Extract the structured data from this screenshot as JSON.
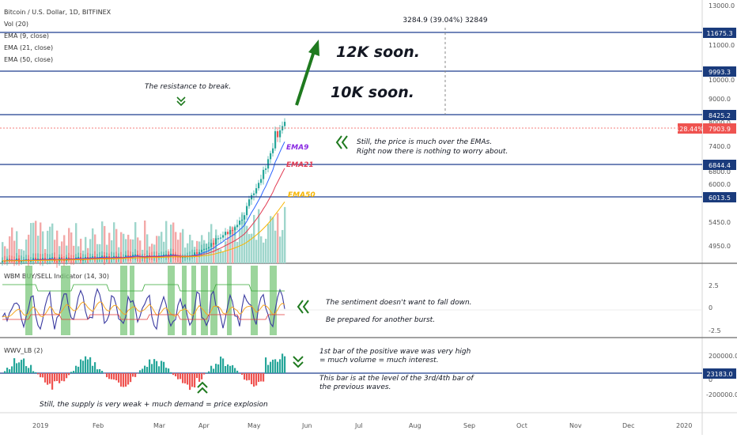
{
  "chart_data": {
    "type": "line",
    "legend": {
      "title": "Bitcoin / U.S. Dollar, 1D, BITFINEX",
      "lines": [
        "Vol (20)",
        "EMA (9, close)",
        "EMA (21, close)",
        "EMA (50, close)"
      ]
    },
    "measure_label": "3284.9 (39.04%) 32849",
    "price_axis": {
      "ticks": [
        "13000.0",
        "11000.0",
        "10000.0",
        "9000.0",
        "8000.0",
        "7400.0",
        "6800.0",
        "6000.0",
        "5450.0",
        "4950.0"
      ],
      "levels": [
        {
          "label": "11675.3"
        },
        {
          "label": "9993.3"
        },
        {
          "label": "8425.2"
        },
        {
          "label": "6844.4"
        },
        {
          "label": "6013.5"
        }
      ],
      "current_price": "7903.9",
      "current_pct": "128.44%"
    },
    "x_axis": {
      "ticks": [
        "2019",
        "Feb",
        "Mar",
        "Apr",
        "May",
        "Jun",
        "Jul",
        "Aug",
        "Sep",
        "Oct",
        "Nov",
        "Dec",
        "2020"
      ]
    },
    "ema_labels": {
      "ema9": "EMA9",
      "ema21": "EMA21",
      "ema50": "EMA50"
    },
    "indicator1": {
      "title": "WBM BUY/SELL Indicator (14, 30)",
      "ticks": [
        "2.5",
        "0",
        "-2.5"
      ]
    },
    "indicator2": {
      "title": "WWV_LB (2)",
      "ticks": [
        "200000.0",
        "0",
        "-200000.0"
      ],
      "level": "23183.0"
    },
    "colors": {
      "level_line": "#1e3f8f",
      "level_badge": "#1a3b7c",
      "up": "#26a69a",
      "down": "#ef5350",
      "ema9": "#2962ff",
      "ema21": "#e23b53",
      "ema50": "#f7b500",
      "arrow": "#1f7a1f",
      "indicator_line": "#3a3aa0"
    }
  },
  "annotations": {
    "resistance": "The resistance to break.",
    "big_12k": "12K soon.",
    "big_10k": "10K soon.",
    "ema_note_1": "Still, the price is much over the EMAs.",
    "ema_note_2": "Right now there is nothing to worry about.",
    "sentiment_1": "The sentiment doesn't want to fall down.",
    "sentiment_2": "Be prepared for another burst.",
    "volume_1": "1st bar of the positive wave was very high",
    "volume_2": "= much volume  = much interest.",
    "volume_3": "This bar is at the level of the 3rd/4th bar of",
    "volume_4": "the previous waves.",
    "supply": "Still, the supply is very weak + much demand = price explosion"
  }
}
